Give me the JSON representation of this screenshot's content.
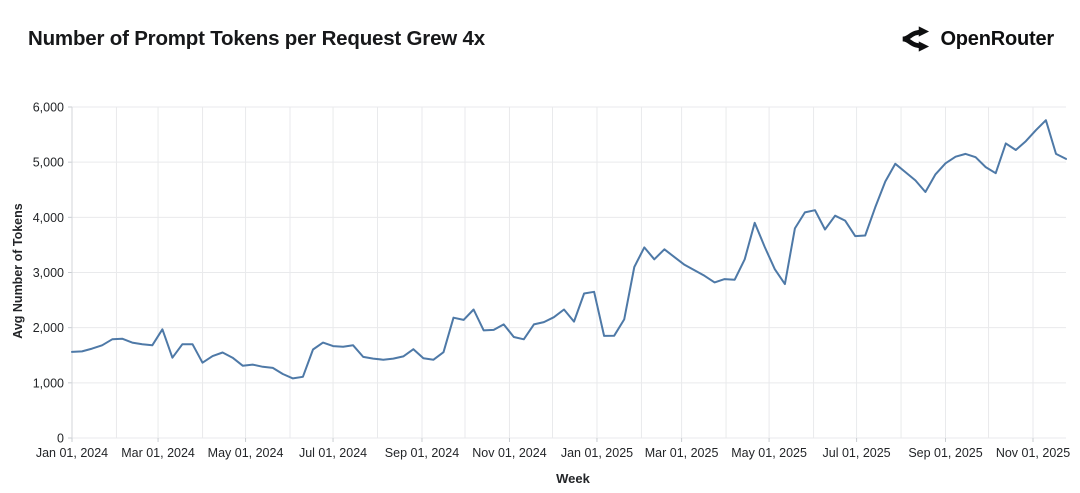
{
  "header": {
    "title": "Number of Prompt Tokens per Request Grew 4x",
    "brand": "OpenRouter"
  },
  "chart_data": {
    "type": "line",
    "title": "Number of Prompt Tokens per Request Grew 4x",
    "xlabel": "Week",
    "ylabel": "Avg Number of Tokens",
    "x_start": "2024-01-01",
    "x_interval_days": 7,
    "x_end": "2025-11-24",
    "ylim": [
      0,
      6000
    ],
    "grid": true,
    "legend": "none",
    "line_color": "#4e79a7",
    "grid_color": "#e9eaec",
    "axis_color": "#d3d6da",
    "text_color": "#232528",
    "y_ticks": [
      {
        "value": 0,
        "label": "0"
      },
      {
        "value": 1000,
        "label": "1,000"
      },
      {
        "value": 2000,
        "label": "2,000"
      },
      {
        "value": 3000,
        "label": "3,000"
      },
      {
        "value": 4000,
        "label": "4,000"
      },
      {
        "value": 5000,
        "label": "5,000"
      },
      {
        "value": 6000,
        "label": "6,000"
      }
    ],
    "x_ticks": [
      {
        "date": "2024-01-01",
        "label": "Jan 01, 2024"
      },
      {
        "date": "2024-03-01",
        "label": "Mar 01, 2024"
      },
      {
        "date": "2024-05-01",
        "label": "May 01, 2024"
      },
      {
        "date": "2024-07-01",
        "label": "Jul 01, 2024"
      },
      {
        "date": "2024-09-01",
        "label": "Sep 01, 2024"
      },
      {
        "date": "2024-11-01",
        "label": "Nov 01, 2024"
      },
      {
        "date": "2025-01-01",
        "label": "Jan 01, 2025"
      },
      {
        "date": "2025-03-01",
        "label": "Mar 01, 2025"
      },
      {
        "date": "2025-05-01",
        "label": "May 01, 2025"
      },
      {
        "date": "2025-07-01",
        "label": "Jul 01, 2025"
      },
      {
        "date": "2025-09-01",
        "label": "Sep 01, 2025"
      },
      {
        "date": "2025-11-01",
        "label": "Nov 01, 2025"
      }
    ],
    "values": [
      1560,
      1570,
      1620,
      1680,
      1790,
      1800,
      1730,
      1700,
      1680,
      1970,
      1455,
      1700,
      1700,
      1365,
      1485,
      1550,
      1455,
      1310,
      1330,
      1290,
      1270,
      1160,
      1080,
      1110,
      1605,
      1730,
      1665,
      1655,
      1680,
      1470,
      1440,
      1420,
      1440,
      1480,
      1610,
      1445,
      1420,
      1555,
      2180,
      2140,
      2330,
      1950,
      1960,
      2060,
      1830,
      1790,
      2060,
      2100,
      2190,
      2330,
      2110,
      2620,
      2650,
      1850,
      1855,
      2150,
      3100,
      3455,
      3240,
      3420,
      3280,
      3140,
      3040,
      2940,
      2820,
      2880,
      2870,
      3240,
      3900,
      3460,
      3060,
      2790,
      3800,
      4090,
      4130,
      3780,
      4030,
      3940,
      3660,
      3670,
      4180,
      4650,
      4970,
      4820,
      4670,
      4460,
      4780,
      4980,
      5100,
      5150,
      5090,
      4910,
      4800,
      5340,
      5220,
      5380,
      5580,
      5760,
      5150,
      5060
    ]
  }
}
